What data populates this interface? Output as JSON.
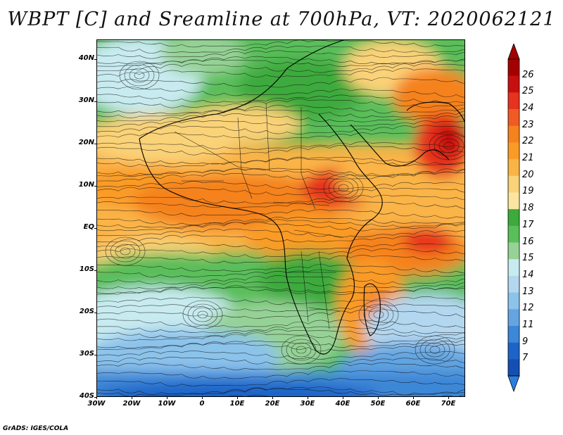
{
  "title": "WBPT [C] and Sreamline at 700hPa, VT: 2020062121",
  "credit": "GrADS: IGES/COLA",
  "map": {
    "lat_labels": [
      "40N",
      "30N",
      "20N",
      "10N",
      "EQ",
      "10S",
      "20S",
      "30S",
      "40S"
    ],
    "lon_labels": [
      "30W",
      "20W",
      "10W",
      "0",
      "10E",
      "20E",
      "30E",
      "40E",
      "50E",
      "60E",
      "70E"
    ]
  },
  "colorbar": {
    "labels": [
      "26",
      "25",
      "24",
      "23",
      "22",
      "21",
      "20",
      "19",
      "18",
      "17",
      "16",
      "15",
      "14",
      "13",
      "12",
      "11",
      "9",
      "7"
    ],
    "colors": [
      "#a50000",
      "#c80f0f",
      "#e6321e",
      "#f05a23",
      "#f5821e",
      "#fa9b28",
      "#fab446",
      "#fad278",
      "#fae6a0",
      "#3caa3c",
      "#5abe5a",
      "#96d296",
      "#c8ebf0",
      "#b4d7f0",
      "#8cc3eb",
      "#64a5e1",
      "#3c87d7",
      "#1e64c8",
      "#1450b4"
    ]
  }
}
